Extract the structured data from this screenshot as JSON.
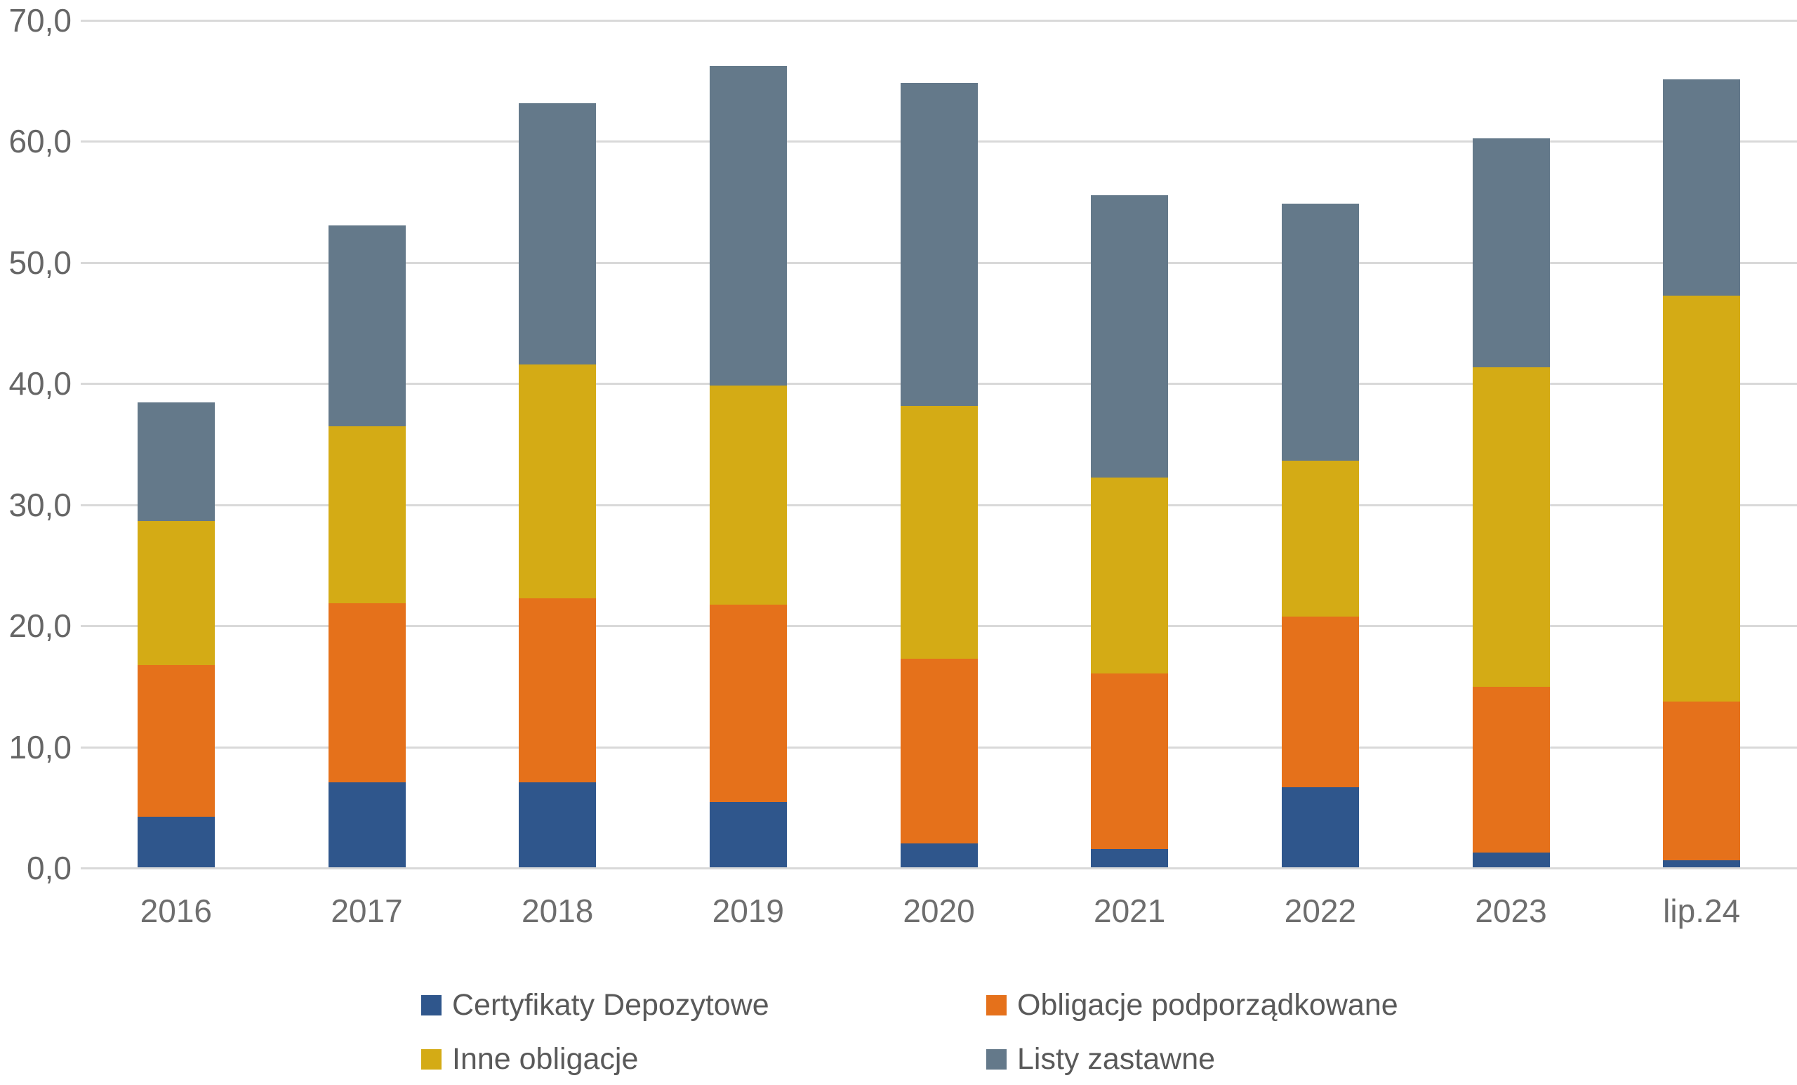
{
  "chart_data": {
    "type": "bar",
    "stacked": true,
    "title": "",
    "xlabel": "",
    "ylabel": "",
    "categories": [
      "2016",
      "2017",
      "2018",
      "2019",
      "2020",
      "2021",
      "2022",
      "2023",
      "lip.24"
    ],
    "series": [
      {
        "name": "Certyfikaty Depozytowe",
        "color": "#2F568C",
        "values": [
          4.2,
          7.0,
          7.0,
          5.4,
          2.0,
          1.5,
          6.6,
          1.2,
          0.6
        ]
      },
      {
        "name": "Obligacje podporządkowane",
        "color": "#E5711B",
        "values": [
          12.5,
          14.8,
          15.2,
          16.3,
          15.2,
          14.5,
          14.1,
          13.7,
          13.1
        ]
      },
      {
        "name": "Inne obligacje",
        "color": "#D4AB15",
        "values": [
          11.9,
          14.6,
          19.3,
          18.1,
          20.9,
          16.2,
          12.9,
          26.4,
          33.5
        ]
      },
      {
        "name": "Listy zastawne",
        "color": "#64798A",
        "values": [
          9.8,
          16.6,
          21.6,
          26.4,
          26.7,
          23.3,
          21.2,
          18.9,
          17.9
        ]
      }
    ],
    "totals": [
      38.4,
      53.0,
      63.1,
      66.2,
      64.8,
      55.5,
      54.8,
      60.2,
      65.1
    ],
    "ylim": [
      0,
      70
    ],
    "ytick_step": 10,
    "ytick_labels": [
      "0,0",
      "10,0",
      "20,0",
      "30,0",
      "40,0",
      "50,0",
      "60,0",
      "70,0"
    ],
    "grid": "horizontal",
    "gridline_color": "#D9D9D9",
    "background_color": "#FFFFFF",
    "axis_text_color": "#666666",
    "legend_text_color": "#595959",
    "legend_position": "bottom",
    "legend_rows": 2,
    "legend_columns": 2,
    "bar_order_bottom_to_top": [
      "Certyfikaty Depozytowe",
      "Obligacje podporządkowane",
      "Inne obligacje",
      "Listy zastawne"
    ]
  }
}
